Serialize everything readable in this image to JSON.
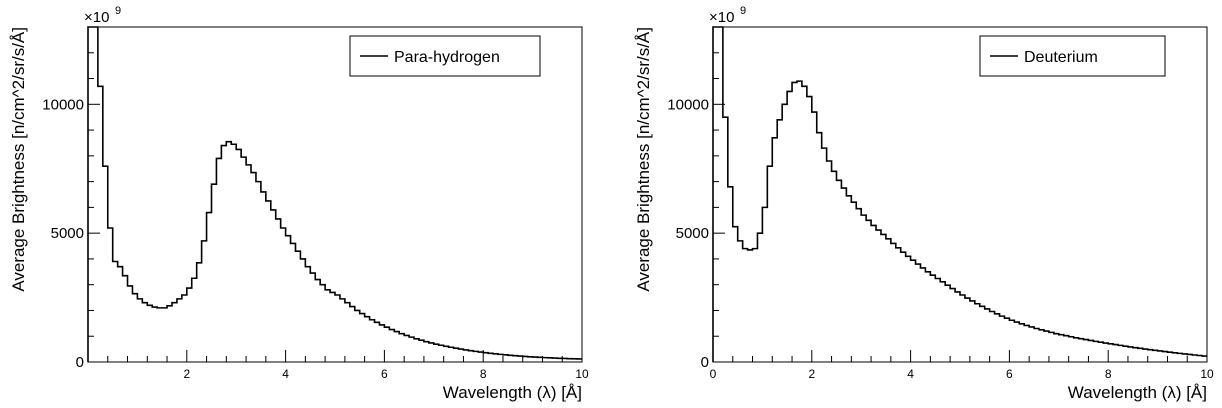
{
  "chart_data": [
    {
      "type": "histogram",
      "xlabel": "Wavelength (λ) [Å]",
      "ylabel": "Average Brightness [n/cm^2/sr/s/Å]",
      "y_multiplier": "×10",
      "y_multiplier_exp": "9",
      "legend": "Para-hydrogen",
      "legend_position": "top-right",
      "xlim": [
        0,
        10
      ],
      "ylim": [
        0,
        13000
      ],
      "x_ticks": [
        2,
        4,
        6,
        8,
        10
      ],
      "x_tick_labels": [
        "2",
        "4",
        "6",
        "8",
        "10"
      ],
      "y_ticks": [
        0,
        5000,
        10000
      ],
      "y_tick_labels": [
        "0",
        "5000",
        "10000"
      ],
      "grid": false,
      "bin_width": 0.1,
      "series": [
        {
          "values": [
            13000,
            13000,
            10700,
            7600,
            5200,
            3900,
            3700,
            3350,
            2950,
            2650,
            2450,
            2300,
            2200,
            2130,
            2100,
            2100,
            2180,
            2300,
            2450,
            2600,
            2870,
            3250,
            3850,
            4700,
            5800,
            6900,
            7900,
            8400,
            8550,
            8450,
            8250,
            7950,
            7650,
            7350,
            7000,
            6600,
            6250,
            5900,
            5550,
            5200,
            4900,
            4600,
            4300,
            4000,
            3700,
            3450,
            3200,
            3000,
            2800,
            2700,
            2600,
            2450,
            2300,
            2150,
            2000,
            1880,
            1760,
            1640,
            1540,
            1440,
            1350,
            1260,
            1180,
            1100,
            1030,
            965,
            900,
            845,
            790,
            740,
            690,
            650,
            610,
            572,
            536,
            502,
            470,
            440,
            412,
            385,
            360,
            337,
            316,
            296,
            278,
            261,
            245,
            230,
            216,
            203,
            191,
            180,
            170,
            161,
            152,
            144,
            137,
            130,
            124,
            118
          ]
        }
      ]
    },
    {
      "type": "histogram",
      "xlabel": "Wavelength (λ) [Å]",
      "ylabel": "Average Brightness [n/cm^2/sr/s/Å]",
      "y_multiplier": "×10",
      "y_multiplier_exp": "9",
      "legend": "Deuterium",
      "legend_position": "top-right",
      "xlim": [
        0,
        10
      ],
      "ylim": [
        0,
        13000
      ],
      "x_ticks": [
        0,
        2,
        4,
        6,
        8,
        10
      ],
      "x_tick_labels": [
        "0",
        "2",
        "4",
        "6",
        "8",
        "10"
      ],
      "y_ticks": [
        0,
        5000,
        10000
      ],
      "y_tick_labels": [
        "0",
        "5000",
        "10000"
      ],
      "grid": false,
      "bin_width": 0.1,
      "series": [
        {
          "values": [
            13000,
            13000,
            9500,
            6800,
            5250,
            4700,
            4400,
            4350,
            4400,
            5000,
            6000,
            7600,
            8700,
            9400,
            10000,
            10500,
            10850,
            10900,
            10700,
            10300,
            9700,
            8900,
            8300,
            7800,
            7400,
            7050,
            6750,
            6450,
            6200,
            5950,
            5700,
            5500,
            5300,
            5120,
            4950,
            4780,
            4600,
            4430,
            4260,
            4100,
            3950,
            3800,
            3650,
            3500,
            3370,
            3240,
            3110,
            2980,
            2850,
            2720,
            2600,
            2480,
            2370,
            2260,
            2160,
            2060,
            1960,
            1870,
            1780,
            1700,
            1620,
            1550,
            1480,
            1420,
            1360,
            1300,
            1250,
            1200,
            1150,
            1100,
            1060,
            1020,
            980,
            940,
            905,
            870,
            835,
            800,
            768,
            736,
            705,
            675,
            645,
            615,
            585,
            557,
            530,
            503,
            477,
            452,
            428,
            404,
            380,
            357,
            335,
            313,
            292,
            272,
            252,
            232
          ]
        }
      ]
    }
  ]
}
